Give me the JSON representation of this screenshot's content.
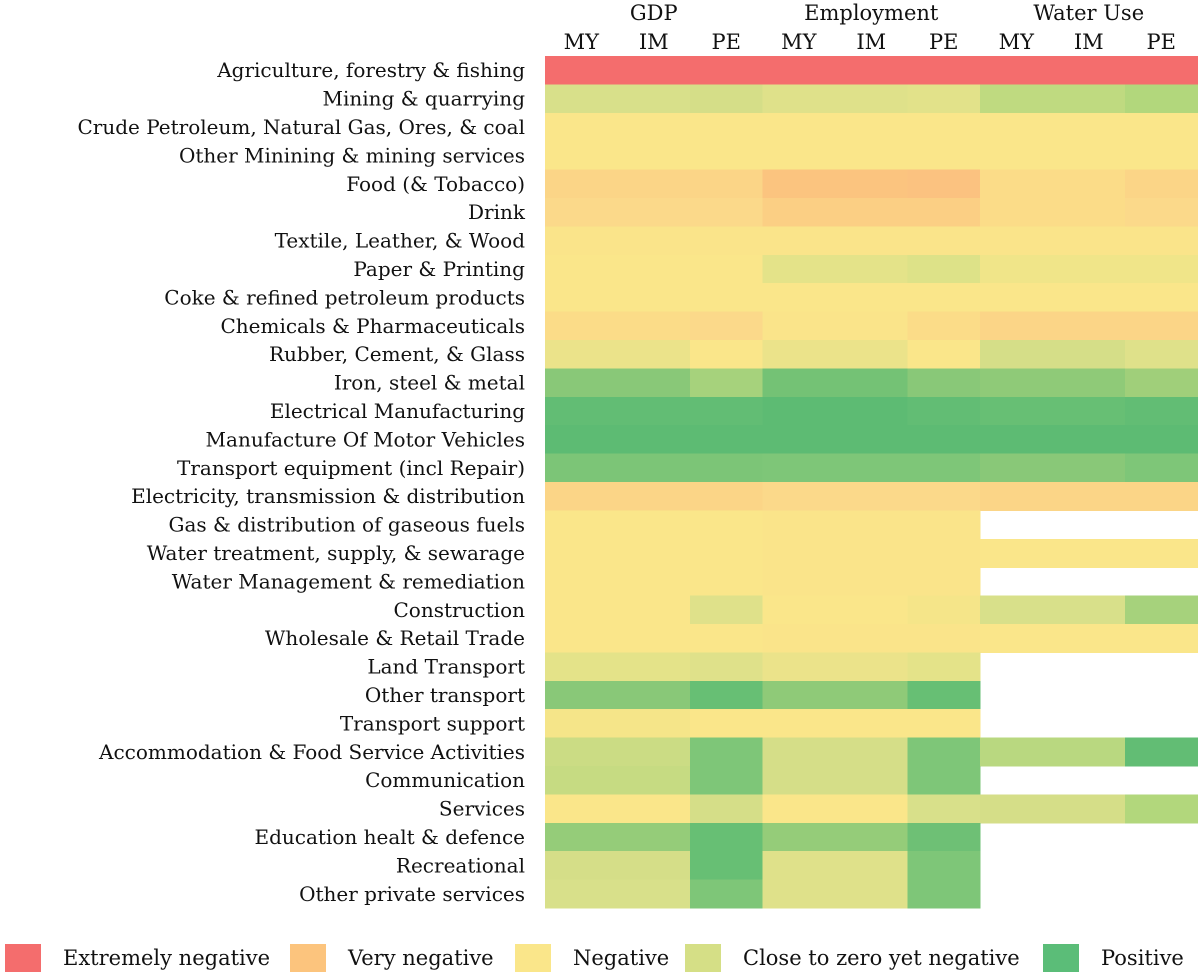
{
  "chart_data": {
    "type": "heatmap",
    "column_groups": [
      {
        "name": "GDP",
        "columns": [
          "MY",
          "IM",
          "PE"
        ]
      },
      {
        "name": "Employment",
        "columns": [
          "MY",
          "IM",
          "PE"
        ]
      },
      {
        "name": "Water Use",
        "columns": [
          "MY",
          "IM",
          "PE"
        ]
      }
    ],
    "rows": [
      "Agriculture, forestry & fishing",
      "Mining & quarrying",
      "Crude Petroleum, Natural Gas, Ores, & coal",
      "Other Minining & mining services",
      "Food (& Tobacco)",
      "Drink",
      "Textile, Leather, & Wood",
      "Paper & Printing",
      "Coke & refined petroleum products",
      "Chemicals & Pharmaceuticals",
      "Rubber, Cement, & Glass",
      "Iron, steel & metal",
      "Electrical Manufacturing",
      "Manufacture Of Motor Vehicles",
      "Transport equipment (incl Repair)",
      "Electricity, transmission & distribution",
      "Gas & distribution of gaseous fuels",
      "Water treatment, supply, & sewarage",
      "Water Management & remediation",
      "Construction",
      "Wholesale & Retail Trade",
      "Land Transport",
      "Other transport",
      "Transport support",
      "Accommodation & Food Service Activities",
      "Communication",
      "Services",
      "Education healt & defence",
      "Recreational",
      "Other private services"
    ],
    "legend": [
      {
        "label": "Extremely negative",
        "color": "#f46d6d"
      },
      {
        "label": "Very negative",
        "color": "#fcc47d"
      },
      {
        "label": "Negative",
        "color": "#fae68a"
      },
      {
        "label": "Close to zero yet negative",
        "color": "#d5df86"
      },
      {
        "label": "Positive",
        "color": "#5bbd78"
      }
    ],
    "values": [
      [
        "#f46d6d",
        "#f46d6d",
        "#f46d6d",
        "#f46d6d",
        "#f46d6d",
        "#f46d6d",
        "#f46d6d",
        "#f46d6d",
        "#f46d6d"
      ],
      [
        "#d8e08a",
        "#d8e08a",
        "#d5de88",
        "#dfe18a",
        "#dfe18a",
        "#e2e28a",
        "#bfda80",
        "#bfda80",
        "#b2d77c"
      ],
      [
        "#fae68a",
        "#fae68a",
        "#fae68a",
        "#fae68a",
        "#fae68a",
        "#fae68a",
        "#fae68a",
        "#fae68a",
        "#fae68a"
      ],
      [
        "#fae68a",
        "#fae68a",
        "#fae68a",
        "#fae68a",
        "#fae68a",
        "#fae68a",
        "#fae68a",
        "#fae68a",
        "#fae68a"
      ],
      [
        "#fbd587",
        "#fbd587",
        "#fbd587",
        "#fbc47f",
        "#fbc47f",
        "#fbc280",
        "#fbdc88",
        "#fbdc88",
        "#fbd587"
      ],
      [
        "#fbd98a",
        "#fbd98a",
        "#fbd98a",
        "#fbcf84",
        "#fbcf84",
        "#fbcf84",
        "#fbdc88",
        "#fbdc88",
        "#fbd98a"
      ],
      [
        "#fae48a",
        "#fae48a",
        "#fae48a",
        "#fae48a",
        "#fae48a",
        "#fae48a",
        "#fae48a",
        "#fae48a",
        "#fae48a"
      ],
      [
        "#fae68a",
        "#fae68a",
        "#fae68a",
        "#e4e389",
        "#e4e389",
        "#dde288",
        "#f0e589",
        "#f0e589",
        "#f0e589"
      ],
      [
        "#fae68a",
        "#fae68a",
        "#fae68a",
        "#fae68a",
        "#fae68a",
        "#fae68a",
        "#fae68a",
        "#fae68a",
        "#fae68a"
      ],
      [
        "#fbdc88",
        "#fbdc88",
        "#fbd98a",
        "#fae48a",
        "#fae48a",
        "#fbdc88",
        "#fbd587",
        "#fbd587",
        "#fbd587"
      ],
      [
        "#ebe38a",
        "#ebe38a",
        "#fae68a",
        "#ebe38a",
        "#ebe38a",
        "#fae68a",
        "#d5de88",
        "#d5de88",
        "#dfe18a"
      ],
      [
        "#89c878",
        "#89c878",
        "#a6d27c",
        "#74c275",
        "#74c275",
        "#89c878",
        "#8fca78",
        "#8fca78",
        "#a0cf7a"
      ],
      [
        "#62bd74",
        "#62bd74",
        "#62bd74",
        "#5dbb73",
        "#5dbb73",
        "#62bd74",
        "#67bf74",
        "#67bf74",
        "#62bd74"
      ],
      [
        "#5dbb73",
        "#5dbb73",
        "#5dbb73",
        "#5dbb73",
        "#5dbb73",
        "#5dbb73",
        "#5dbb73",
        "#5dbb73",
        "#5dbb73"
      ],
      [
        "#7cc577",
        "#7cc577",
        "#7cc577",
        "#7ec678",
        "#7ec678",
        "#7ec678",
        "#89c878",
        "#89c878",
        "#7ec678"
      ],
      [
        "#fbd587",
        "#fbd587",
        "#fbd587",
        "#fbd98a",
        "#fbd98a",
        "#fbd98a",
        "#fbd587",
        "#fbd587",
        "#fbd587"
      ],
      [
        "#fae68a",
        "#fae68a",
        "#fae68a",
        "#fae48a",
        "#fae48a",
        "#fae48a",
        null,
        null,
        null
      ],
      [
        "#fae68a",
        "#fae68a",
        "#fae68a",
        "#fae48a",
        "#fae48a",
        "#fae48a",
        "#fae68a",
        "#fae68a",
        "#fae68a"
      ],
      [
        "#fae68a",
        "#fae68a",
        "#fae68a",
        "#fae48a",
        "#fae48a",
        "#fae48a",
        null,
        null,
        null
      ],
      [
        "#fae68a",
        "#fae68a",
        "#dfe18a",
        "#fae68a",
        "#fae68a",
        "#f5e589",
        "#d8e08a",
        "#d8e08a",
        "#a6d27c"
      ],
      [
        "#fae68a",
        "#fae68a",
        "#fae68a",
        "#fae48a",
        "#fae48a",
        "#fae48a",
        "#fae68a",
        "#fae68a",
        "#fae68a"
      ],
      [
        "#e4e389",
        "#e4e389",
        "#dfe18a",
        "#ebe38a",
        "#ebe38a",
        "#e4e389",
        null,
        null,
        null
      ],
      [
        "#89c878",
        "#89c878",
        "#67bf74",
        "#8fca78",
        "#8fca78",
        "#67bf74",
        null,
        null,
        null
      ],
      [
        "#f5e589",
        "#f5e589",
        "#fae68a",
        "#fae68a",
        "#fae68a",
        "#fae68a",
        null,
        null,
        null
      ],
      [
        "#cbdc84",
        "#cbdc84",
        "#7ec678",
        "#d5de88",
        "#d5de88",
        "#7ec678",
        "#b9d880",
        "#b9d880",
        "#62bd74"
      ],
      [
        "#c6db82",
        "#c6db82",
        "#7ec678",
        "#d5de88",
        "#d5de88",
        "#7ec678",
        null,
        null,
        null
      ],
      [
        "#fae68a",
        "#fae68a",
        "#d5de88",
        "#fae68a",
        "#fae68a",
        "#d8e08a",
        "#d5de88",
        "#d5de88",
        "#b2d77c"
      ],
      [
        "#95cc79",
        "#95cc79",
        "#67bf74",
        "#95cc79",
        "#95cc79",
        "#6ec075",
        null,
        null,
        null
      ],
      [
        "#d5de88",
        "#d5de88",
        "#67bf74",
        "#dfe18a",
        "#dfe18a",
        "#7ec678",
        null,
        null,
        null
      ],
      [
        "#d8e08a",
        "#d8e08a",
        "#7ec678",
        "#dfe18a",
        "#dfe18a",
        "#7ec678",
        null,
        null,
        null
      ]
    ]
  }
}
